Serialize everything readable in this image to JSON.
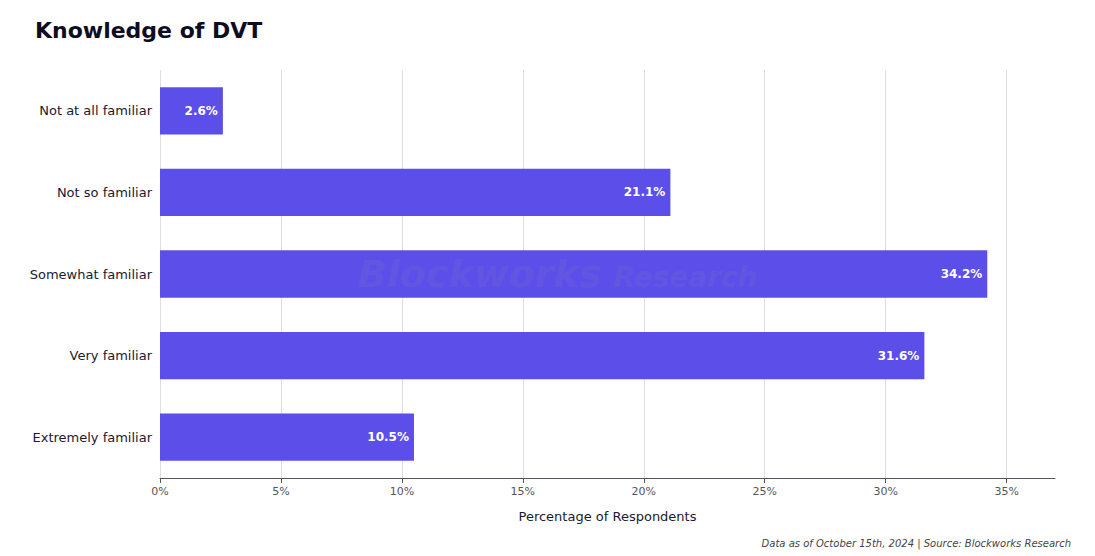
{
  "chart_data": {
    "type": "bar",
    "orientation": "horizontal",
    "title": "Knowledge of DVT",
    "categories": [
      "Not at all familiar",
      "Not so familiar",
      "Somewhat familiar",
      "Very familiar",
      "Extremely familiar"
    ],
    "values": [
      2.6,
      21.1,
      34.2,
      31.6,
      10.5
    ],
    "value_labels": [
      "2.6%",
      "21.1%",
      "34.2%",
      "31.6%",
      "10.5%"
    ],
    "data_labels": true,
    "color": "#5c4ee8",
    "xlabel": "Percentage of Respondents",
    "xlim": [
      0,
      37
    ],
    "xticks": [
      {
        "value": 0,
        "label": "0%"
      },
      {
        "value": 5,
        "label": "5%"
      },
      {
        "value": 10,
        "label": "10%"
      },
      {
        "value": 15,
        "label": "15%"
      },
      {
        "value": 20,
        "label": "20%"
      },
      {
        "value": 25,
        "label": "25%"
      },
      {
        "value": 30,
        "label": "30%"
      },
      {
        "value": 35,
        "label": "35%"
      }
    ],
    "grid": true,
    "annotations": [
      "Blockworks",
      "Research",
      "Data as of October 15th, 2024 | Source: Blockworks Research"
    ]
  }
}
